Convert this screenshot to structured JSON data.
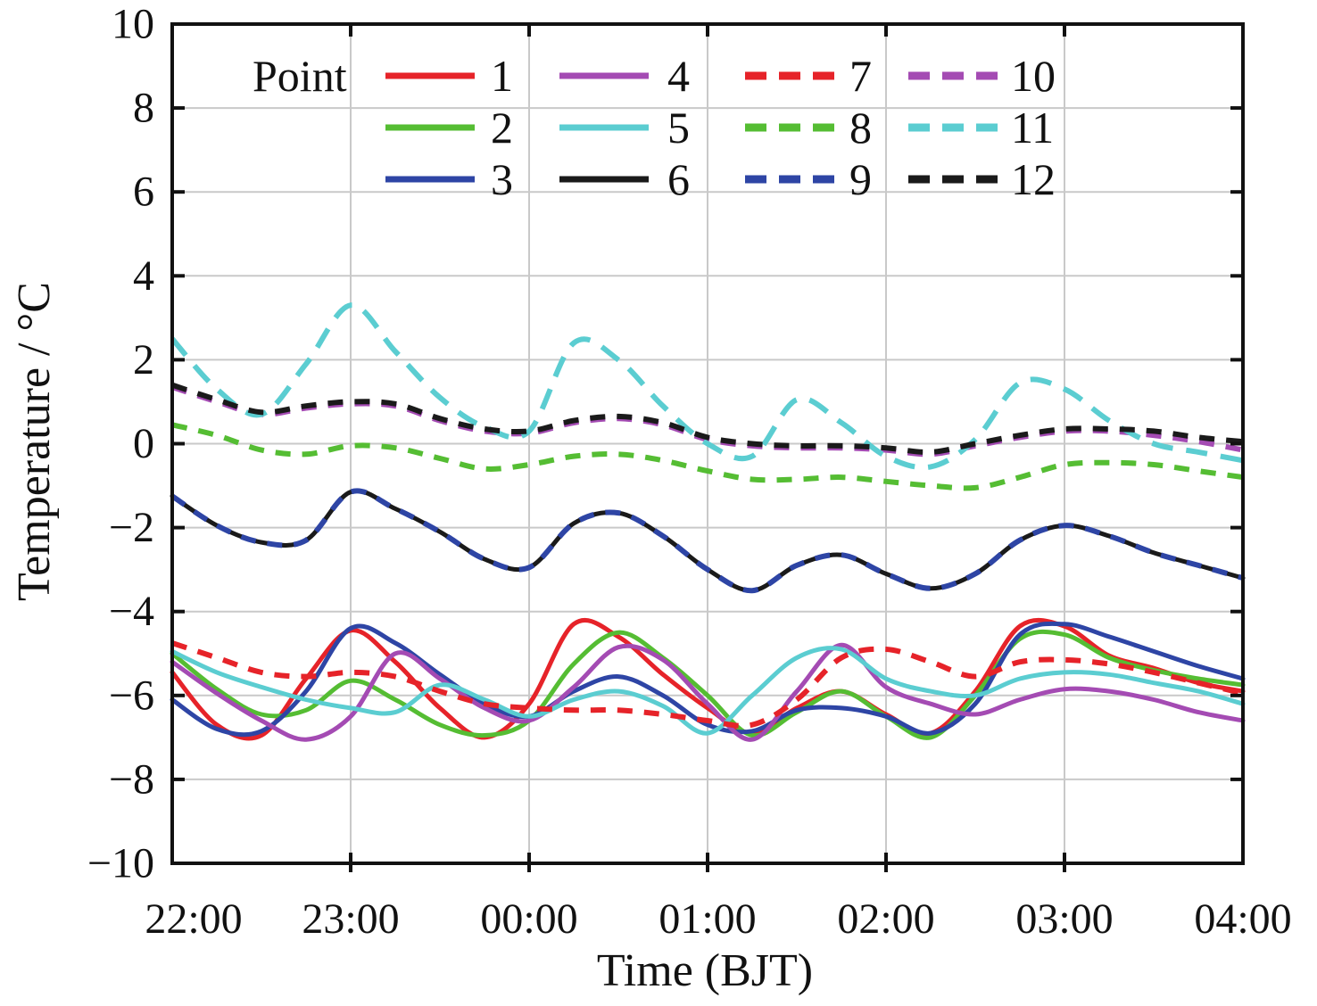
{
  "figure": {
    "title": "",
    "x_axis_label": "Time (BJT)",
    "y_axis_label": "Temperature / °C",
    "legend_title": "Point"
  },
  "chart_data": {
    "type": "line",
    "title": "",
    "xlabel": "Time (BJT)",
    "ylabel": "Temperature / °C",
    "grid": true,
    "legend_position": "top-inside",
    "legend_title": "Point",
    "ylim": [
      -10,
      10
    ],
    "y_ticks": [
      10,
      8,
      6,
      4,
      2,
      0,
      -2,
      -4,
      -6,
      -8,
      -10
    ],
    "y_tick_labels": [
      "10",
      "8",
      "6",
      "4",
      "2",
      "0",
      "−2",
      "−4",
      "−6",
      "−8",
      "−10"
    ],
    "x_tick_minutes": [
      0,
      60,
      120,
      180,
      240,
      300,
      360
    ],
    "x_tick_labels": [
      "22:00",
      "23:00",
      "00:00",
      "01:00",
      "02:00",
      "03:00",
      "04:00"
    ],
    "x_minutes": [
      0,
      15,
      30,
      45,
      60,
      75,
      90,
      105,
      120,
      135,
      150,
      165,
      180,
      195,
      210,
      225,
      240,
      255,
      270,
      285,
      300,
      315,
      330,
      345,
      360
    ],
    "colors": {
      "red": "#e62329",
      "green": "#55bd33",
      "blue": "#2e45a5",
      "purple": "#a44bb3",
      "cyan": "#5bcdd1",
      "black": "#1a1a1a"
    },
    "series": [
      {
        "name": "1",
        "color": "#e62329",
        "dashed": false,
        "values": [
          -5.45,
          -6.7,
          -6.95,
          -5.6,
          -4.45,
          -5.2,
          -6.3,
          -7.0,
          -6.2,
          -4.3,
          -4.6,
          -5.5,
          -6.3,
          -6.9,
          -6.3,
          -5.9,
          -6.45,
          -6.9,
          -5.9,
          -4.35,
          -4.35,
          -5.05,
          -5.35,
          -5.7,
          -5.9
        ]
      },
      {
        "name": "2",
        "color": "#55bd33",
        "dashed": false,
        "values": [
          -5.0,
          -5.85,
          -6.45,
          -6.35,
          -5.65,
          -6.1,
          -6.7,
          -6.95,
          -6.6,
          -5.25,
          -4.5,
          -5.1,
          -6.0,
          -6.95,
          -6.4,
          -5.9,
          -6.5,
          -7.0,
          -6.0,
          -4.65,
          -4.55,
          -5.1,
          -5.4,
          -5.6,
          -5.75
        ]
      },
      {
        "name": "3",
        "color": "#2e45a5",
        "dashed": false,
        "values": [
          -6.1,
          -6.8,
          -6.85,
          -5.9,
          -4.4,
          -4.75,
          -5.5,
          -6.2,
          -6.5,
          -5.9,
          -5.55,
          -6.0,
          -6.7,
          -6.85,
          -6.35,
          -6.3,
          -6.5,
          -6.9,
          -6.2,
          -4.55,
          -4.3,
          -4.6,
          -4.95,
          -5.3,
          -5.6
        ]
      },
      {
        "name": "4",
        "color": "#a44bb3",
        "dashed": false,
        "values": [
          -5.2,
          -5.95,
          -6.6,
          -7.05,
          -6.5,
          -5.0,
          -5.6,
          -6.3,
          -6.6,
          -5.8,
          -4.85,
          -5.15,
          -6.2,
          -7.05,
          -5.9,
          -4.8,
          -5.8,
          -6.2,
          -6.45,
          -6.1,
          -5.85,
          -5.9,
          -6.1,
          -6.4,
          -6.6
        ]
      },
      {
        "name": "5",
        "color": "#5bcdd1",
        "dashed": false,
        "values": [
          -4.95,
          -5.45,
          -5.8,
          -6.1,
          -6.3,
          -6.4,
          -5.75,
          -6.1,
          -6.5,
          -6.1,
          -5.9,
          -6.25,
          -6.9,
          -6.0,
          -5.1,
          -4.9,
          -5.6,
          -5.9,
          -6.0,
          -5.6,
          -5.45,
          -5.5,
          -5.7,
          -5.9,
          -6.2
        ]
      },
      {
        "name": "6",
        "color": "#1a1a1a",
        "dashed": false,
        "values": [
          -1.25,
          -1.95,
          -2.35,
          -2.3,
          -1.15,
          -1.55,
          -2.1,
          -2.75,
          -2.95,
          -1.9,
          -1.65,
          -2.2,
          -3.0,
          -3.5,
          -2.9,
          -2.65,
          -3.1,
          -3.45,
          -3.1,
          -2.3,
          -1.95,
          -2.2,
          -2.6,
          -2.9,
          -3.2
        ]
      },
      {
        "name": "7",
        "color": "#e62329",
        "dashed": true,
        "values": [
          -4.75,
          -5.1,
          -5.45,
          -5.55,
          -5.45,
          -5.55,
          -5.9,
          -6.2,
          -6.3,
          -6.35,
          -6.35,
          -6.45,
          -6.6,
          -6.7,
          -6.1,
          -5.1,
          -4.9,
          -5.2,
          -5.55,
          -5.2,
          -5.15,
          -5.25,
          -5.45,
          -5.7,
          -5.95
        ]
      },
      {
        "name": "8",
        "color": "#55bd33",
        "dashed": true,
        "values": [
          0.45,
          0.2,
          -0.15,
          -0.25,
          -0.05,
          -0.1,
          -0.35,
          -0.6,
          -0.5,
          -0.3,
          -0.25,
          -0.4,
          -0.65,
          -0.85,
          -0.85,
          -0.8,
          -0.9,
          -1.0,
          -1.05,
          -0.8,
          -0.5,
          -0.45,
          -0.5,
          -0.65,
          -0.8
        ]
      },
      {
        "name": "9",
        "color": "#2e45a5",
        "dashed": true,
        "values": [
          -1.25,
          -1.95,
          -2.35,
          -2.3,
          -1.15,
          -1.55,
          -2.1,
          -2.75,
          -2.95,
          -1.9,
          -1.65,
          -2.2,
          -3.0,
          -3.5,
          -2.9,
          -2.65,
          -3.1,
          -3.45,
          -3.1,
          -2.3,
          -1.95,
          -2.2,
          -2.6,
          -2.9,
          -3.2
        ]
      },
      {
        "name": "10",
        "color": "#a44bb3",
        "dashed": true,
        "values": [
          1.35,
          1.0,
          0.7,
          0.85,
          0.95,
          0.9,
          0.55,
          0.3,
          0.25,
          0.5,
          0.6,
          0.45,
          0.1,
          -0.05,
          -0.1,
          -0.1,
          -0.15,
          -0.25,
          -0.05,
          0.15,
          0.3,
          0.3,
          0.2,
          0.05,
          -0.15
        ]
      },
      {
        "name": "11",
        "color": "#5bcdd1",
        "dashed": true,
        "values": [
          2.5,
          1.3,
          0.7,
          1.9,
          3.3,
          2.2,
          1.1,
          0.4,
          0.3,
          2.4,
          2.0,
          0.9,
          0.0,
          -0.3,
          1.05,
          0.5,
          -0.3,
          -0.55,
          0.1,
          1.45,
          1.3,
          0.55,
          0.0,
          -0.2,
          -0.4
        ]
      },
      {
        "name": "12",
        "color": "#1a1a1a",
        "dashed": true,
        "values": [
          1.4,
          1.05,
          0.75,
          0.9,
          1.0,
          0.95,
          0.6,
          0.35,
          0.3,
          0.55,
          0.65,
          0.5,
          0.15,
          0.0,
          -0.05,
          -0.05,
          -0.1,
          -0.2,
          0.0,
          0.2,
          0.35,
          0.35,
          0.3,
          0.15,
          0.05
        ]
      }
    ]
  }
}
